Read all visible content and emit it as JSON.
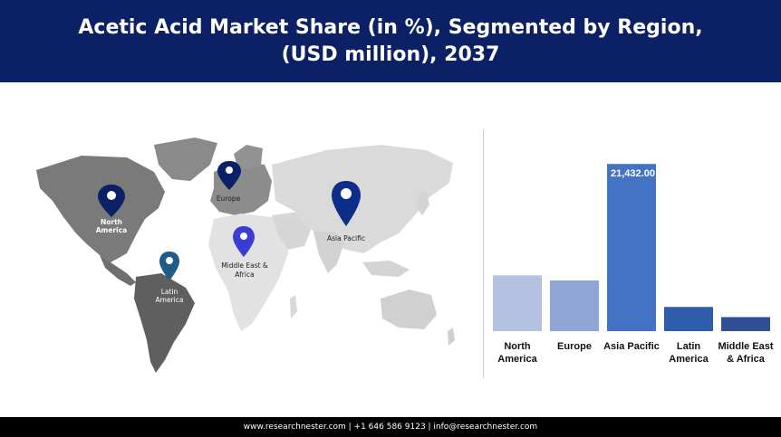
{
  "header": {
    "title": "Acetic Acid Market Share (in %), Segmented by Region, (USD million), 2037"
  },
  "map": {
    "markers": [
      {
        "label": "North America",
        "color": "#0c2066"
      },
      {
        "label": "Europe",
        "color": "#0c2066"
      },
      {
        "label": "Asia Pacific",
        "color": "#0c2e8a"
      },
      {
        "label": "Middle East & Africa",
        "color": "#3b3bd6"
      },
      {
        "label": "Latin America",
        "color": "#1f5c8a"
      }
    ]
  },
  "chart_data": {
    "type": "bar",
    "categories": [
      "North America",
      "Europe",
      "Asia Pacific",
      "Latin America",
      "Middle East & Africa"
    ],
    "values": [
      7150,
      6500,
      21432,
      3100,
      1800
    ],
    "colors": [
      "#b4c2e2",
      "#8fa5d6",
      "#4472c4",
      "#2e5baa",
      "#2f4f97"
    ],
    "data_labels": [
      "",
      "",
      "21,432.00",
      "",
      ""
    ],
    "title": "",
    "xlabel": "",
    "ylabel": "",
    "ylim": [
      0,
      22500
    ]
  },
  "footer": {
    "text": "www.researchnester.com | +1 646 586 9123 | info@researchnester.com"
  }
}
